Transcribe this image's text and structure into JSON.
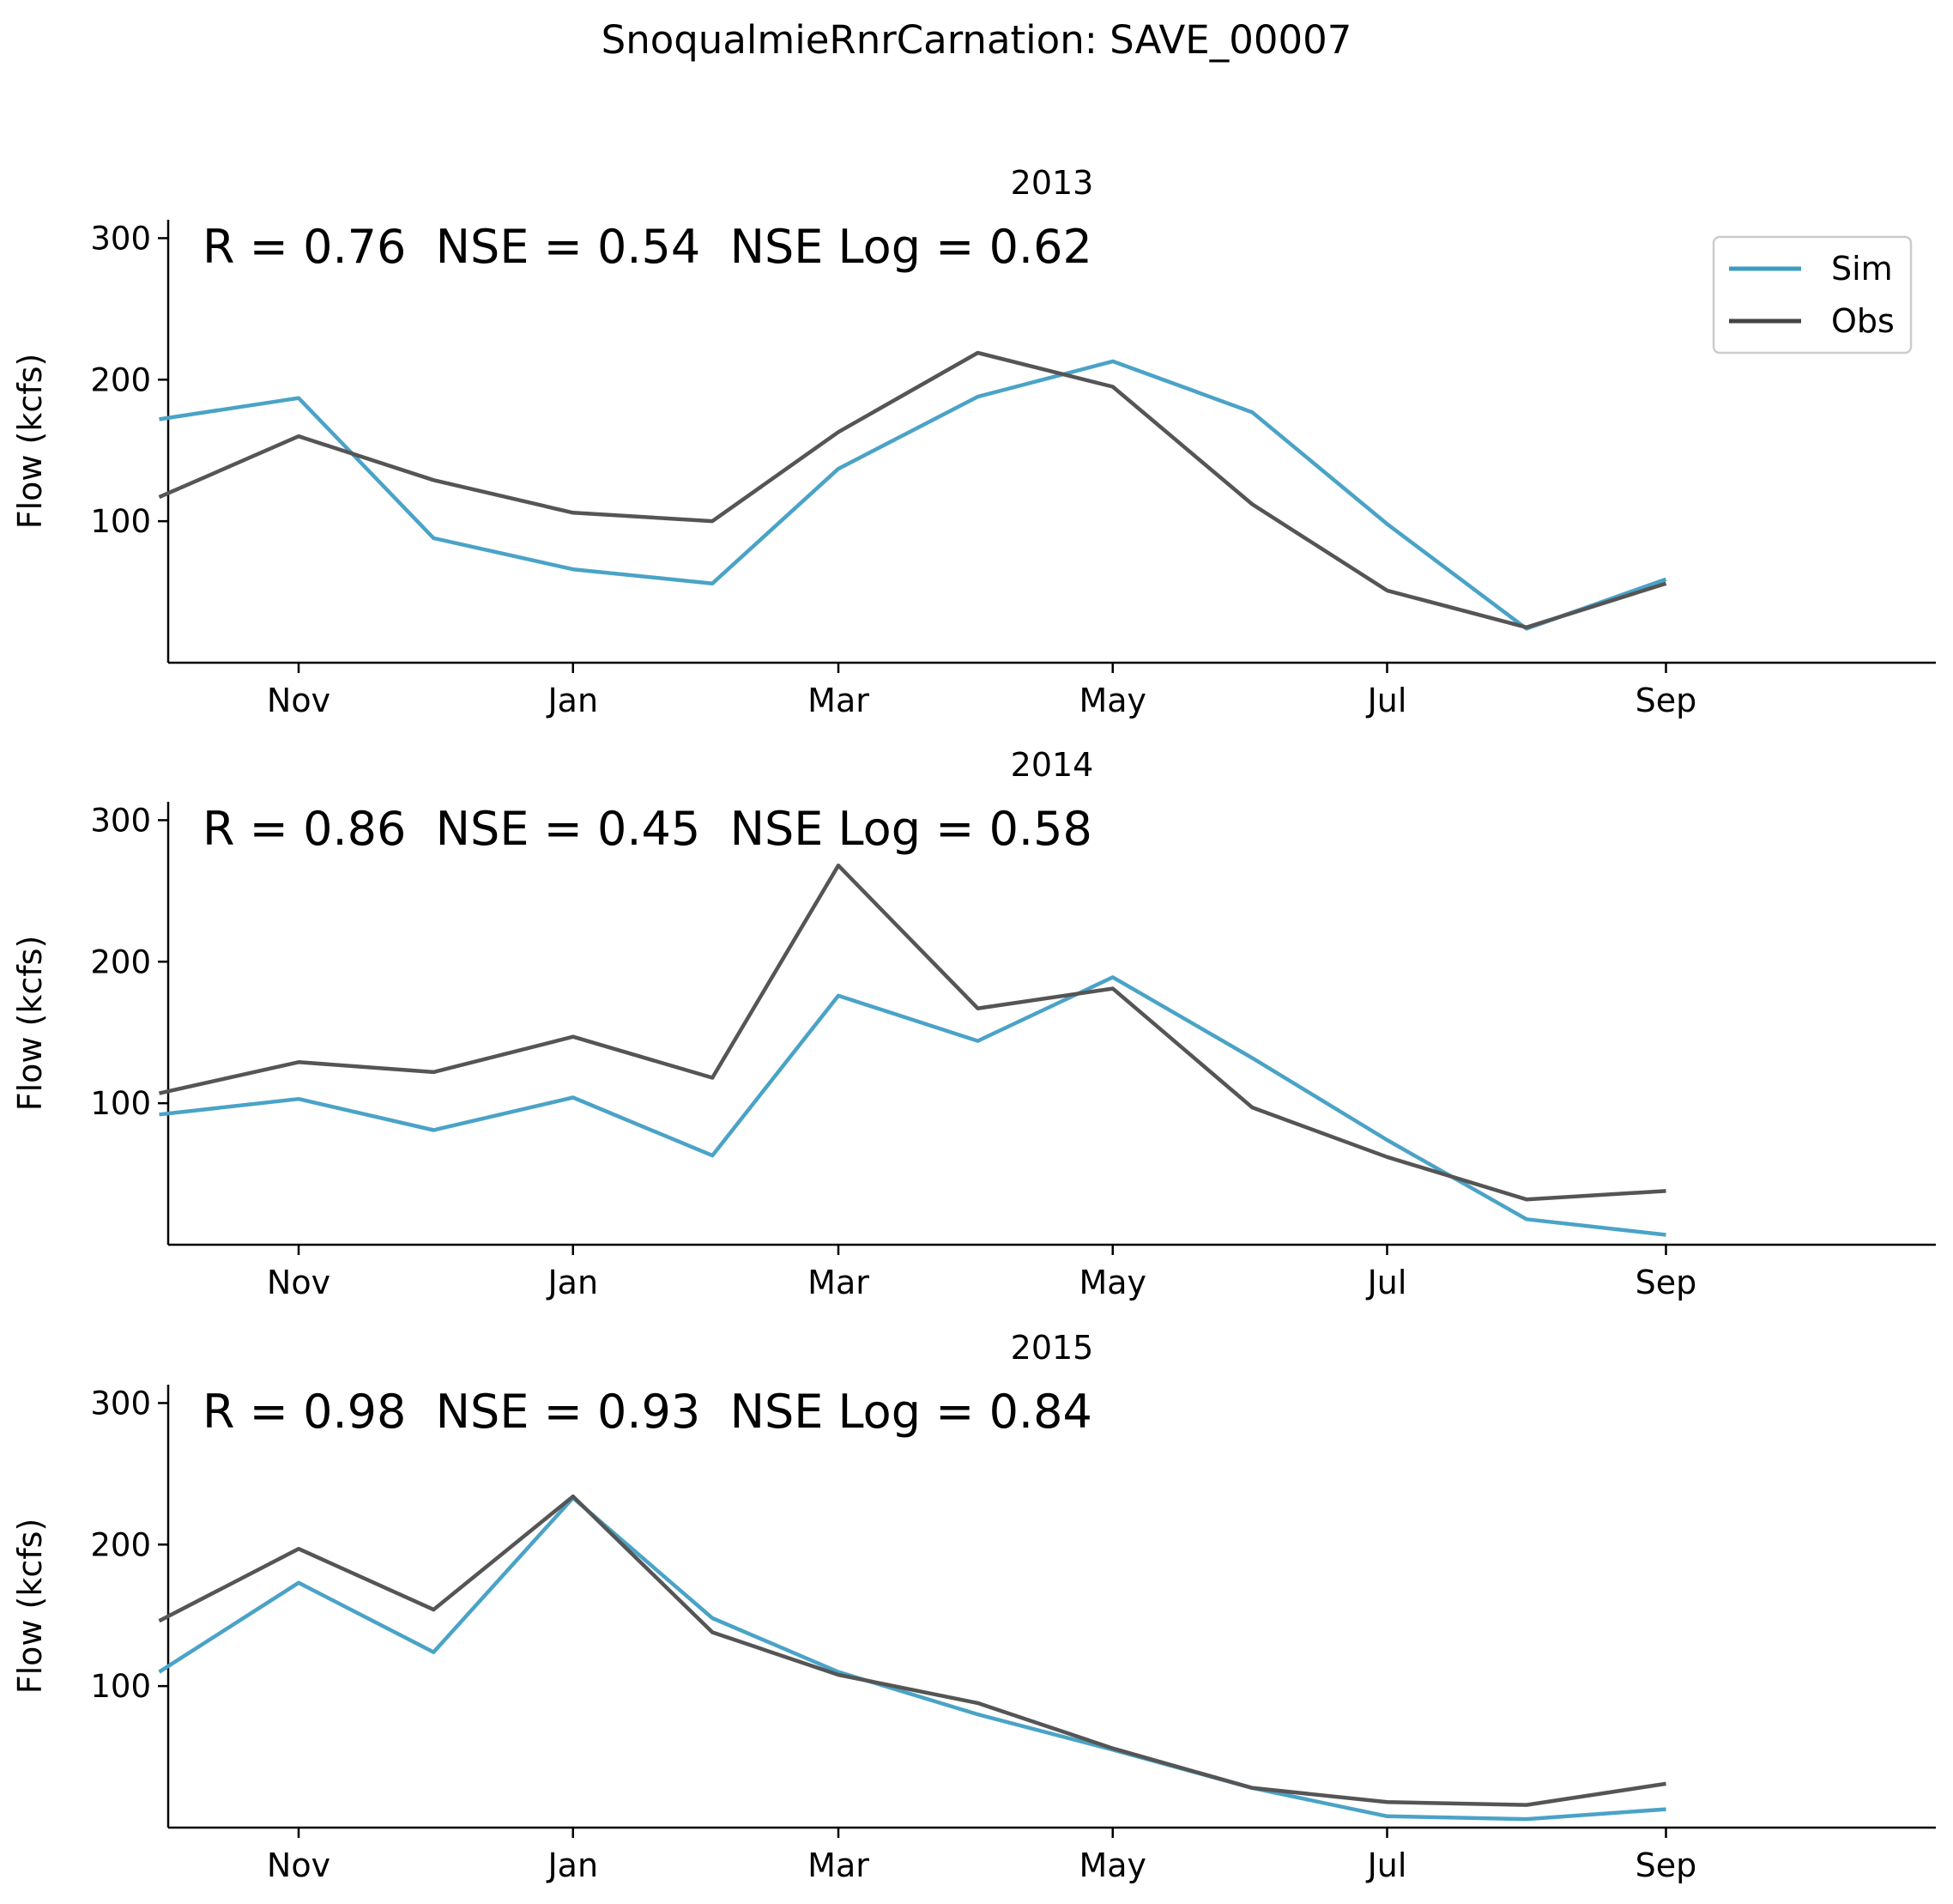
{
  "figure": {
    "title": "SnoqualmieRnrCarnation: SAVE_00007"
  },
  "colors": {
    "sim": "#4aa3c7",
    "obs": "#555555"
  },
  "chart_data": [
    {
      "type": "line",
      "title": "2013",
      "ylabel": "Flow (kcfs)",
      "xlabel": "",
      "annotation": "R = 0.76  NSE = 0.54  NSE Log = 0.62",
      "legend": {
        "entries": [
          "Sim",
          "Obs"
        ],
        "placement": "upper-right"
      },
      "x": [
        "2012-10-01",
        "2012-11-01",
        "2012-12-01",
        "2013-01-01",
        "2013-02-01",
        "2013-03-01",
        "2013-04-01",
        "2013-05-01",
        "2013-06-01",
        "2013-07-01",
        "2013-08-01",
        "2013-09-01"
      ],
      "x_ticks": [
        {
          "date": "2012-11-01",
          "label": "Nov"
        },
        {
          "date": "2013-01-01",
          "label": "Jan"
        },
        {
          "date": "2013-03-01",
          "label": "Mar"
        },
        {
          "date": "2013-05-01",
          "label": "May"
        },
        {
          "date": "2013-07-01",
          "label": "Jul"
        },
        {
          "date": "2013-09-01",
          "label": "Sep"
        }
      ],
      "xlim": [
        "2012-10-03",
        "2013-10-31"
      ],
      "ylim": [
        0,
        313
      ],
      "y_ticks": [
        100,
        200,
        300
      ],
      "series": [
        {
          "name": "Sim",
          "values": [
            172,
            187,
            88,
            66,
            56,
            137,
            188,
            213,
            177,
            98,
            24,
            59
          ]
        },
        {
          "name": "Obs",
          "values": [
            117,
            160,
            129,
            106,
            100,
            163,
            219,
            195,
            112,
            51,
            25,
            56
          ]
        }
      ]
    },
    {
      "type": "line",
      "title": "2014",
      "ylabel": "Flow (kcfs)",
      "xlabel": "",
      "annotation": "R = 0.86  NSE = 0.45  NSE Log = 0.58",
      "x": [
        "2013-10-01",
        "2013-11-01",
        "2013-12-01",
        "2014-01-01",
        "2014-02-01",
        "2014-03-01",
        "2014-04-01",
        "2014-05-01",
        "2014-06-01",
        "2014-07-01",
        "2014-08-01",
        "2014-09-01"
      ],
      "x_ticks": [
        {
          "date": "2013-11-01",
          "label": "Nov"
        },
        {
          "date": "2014-01-01",
          "label": "Jan"
        },
        {
          "date": "2014-03-01",
          "label": "Mar"
        },
        {
          "date": "2014-05-01",
          "label": "May"
        },
        {
          "date": "2014-07-01",
          "label": "Jul"
        },
        {
          "date": "2014-09-01",
          "label": "Sep"
        }
      ],
      "xlim": [
        "2013-10-03",
        "2014-10-31"
      ],
      "ylim": [
        0,
        313
      ],
      "y_ticks": [
        100,
        200,
        300
      ],
      "series": [
        {
          "name": "Sim",
          "values": [
            92,
            103,
            81,
            104,
            63,
            176,
            144,
            189,
            132,
            74,
            18,
            7
          ]
        },
        {
          "name": "Obs",
          "values": [
            107,
            129,
            122,
            147,
            118,
            268,
            167,
            181,
            97,
            62,
            32,
            38
          ]
        }
      ]
    },
    {
      "type": "line",
      "title": "2015",
      "ylabel": "Flow (kcfs)",
      "xlabel": "",
      "annotation": "R = 0.98  NSE = 0.93  NSE Log = 0.84",
      "x": [
        "2014-10-01",
        "2014-11-01",
        "2014-12-01",
        "2015-01-01",
        "2015-02-01",
        "2015-03-01",
        "2015-04-01",
        "2015-05-01",
        "2015-06-01",
        "2015-07-01",
        "2015-08-01",
        "2015-09-01"
      ],
      "x_ticks": [
        {
          "date": "2014-11-01",
          "label": "Nov"
        },
        {
          "date": "2015-01-01",
          "label": "Jan"
        },
        {
          "date": "2015-03-01",
          "label": "Mar"
        },
        {
          "date": "2015-05-01",
          "label": "May"
        },
        {
          "date": "2015-07-01",
          "label": "Jul"
        },
        {
          "date": "2015-09-01",
          "label": "Sep"
        }
      ],
      "xlim": [
        "2014-10-03",
        "2015-10-31"
      ],
      "ylim": [
        0,
        313
      ],
      "y_ticks": [
        100,
        200,
        300
      ],
      "series": [
        {
          "name": "Sim",
          "values": [
            110,
            173,
            124,
            233,
            148,
            110,
            80,
            55,
            28,
            8,
            6,
            13
          ]
        },
        {
          "name": "Obs",
          "values": [
            146,
            197,
            154,
            234,
            138,
            108,
            88,
            56,
            28,
            18,
            16,
            31
          ]
        }
      ]
    }
  ]
}
